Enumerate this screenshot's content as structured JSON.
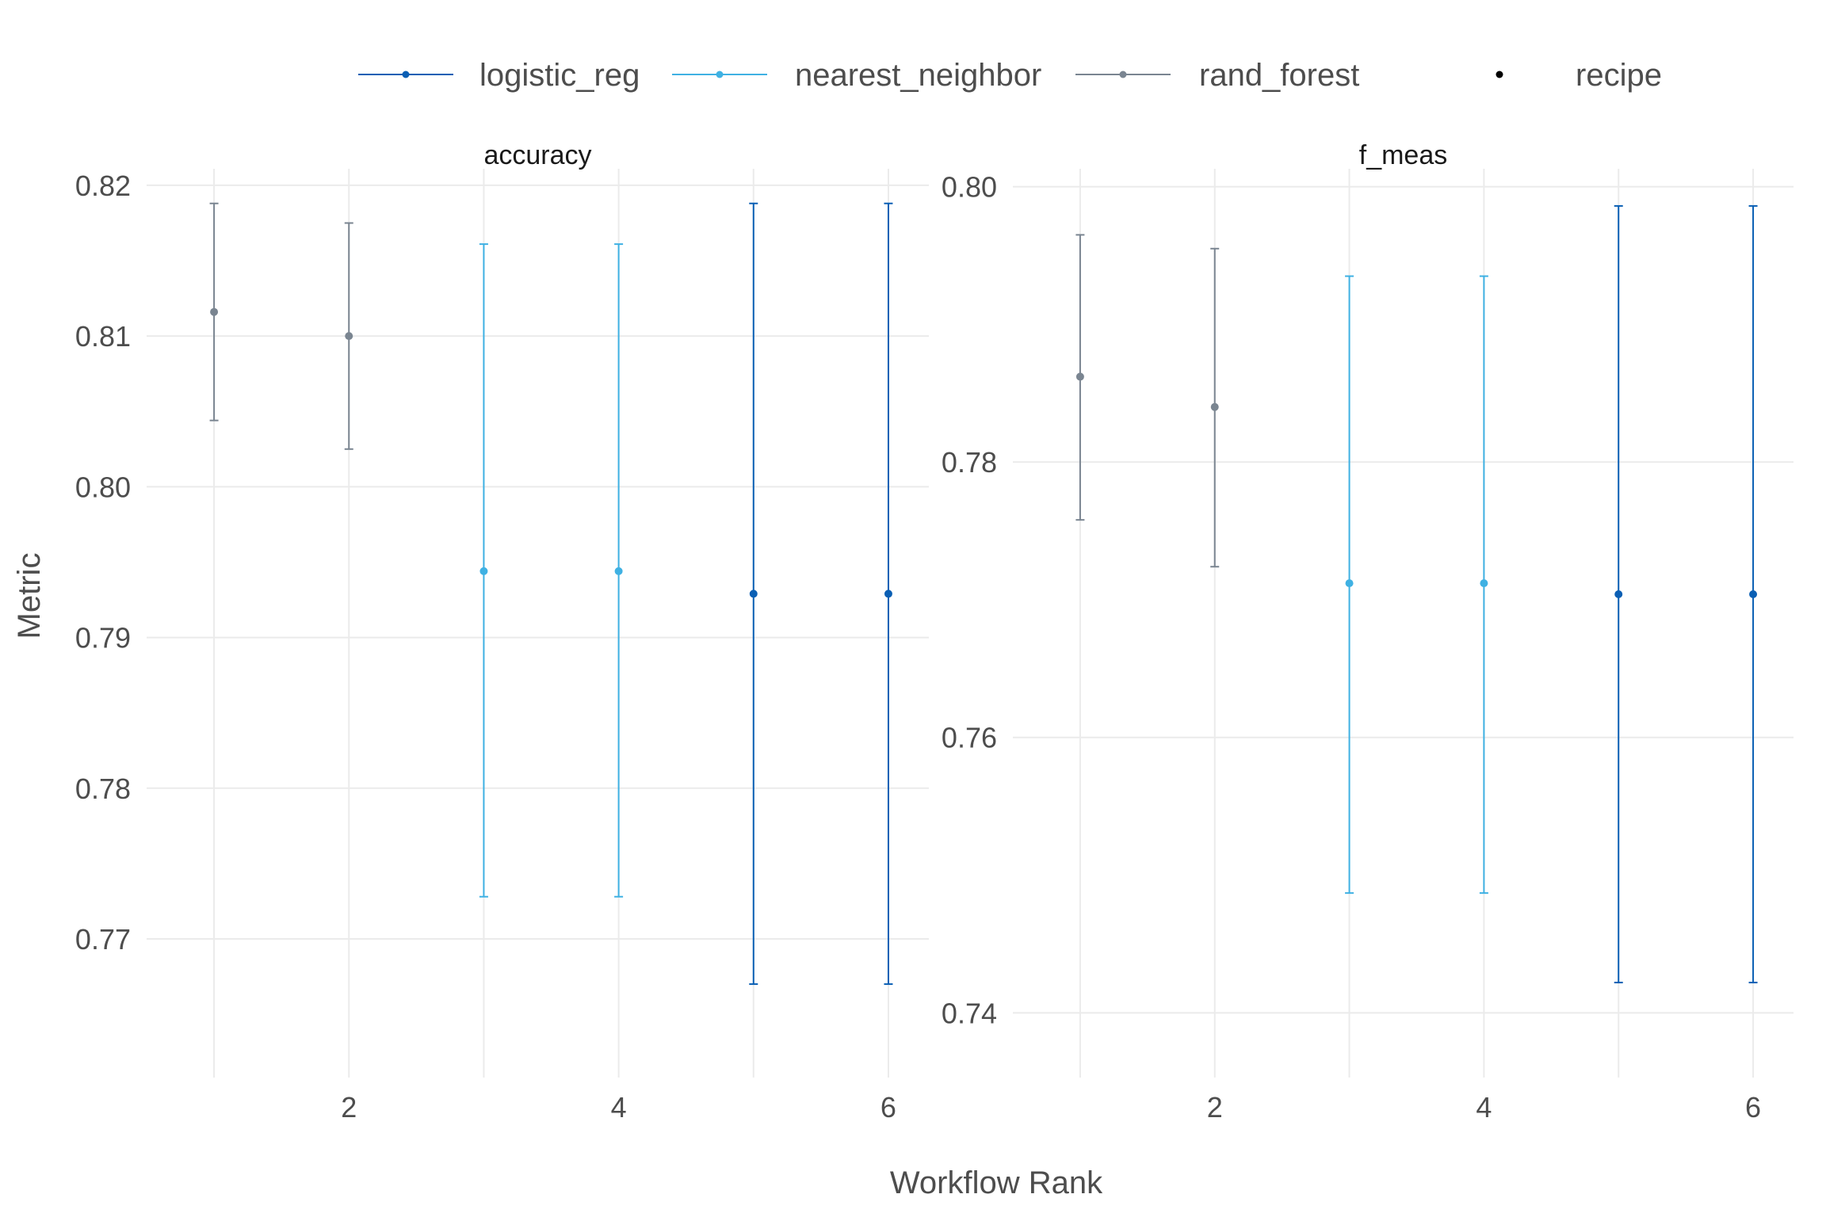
{
  "chart_data": {
    "type": "errorbar",
    "xlabel": "Workflow Rank",
    "ylabel": "Metric",
    "legend": {
      "placement": "top",
      "entries": [
        {
          "name": "logistic_reg",
          "color": "#0a5fb4"
        },
        {
          "name": "nearest_neighbor",
          "color": "#3fb1e3"
        },
        {
          "name": "rand_forest",
          "color": "#7a8591"
        },
        {
          "name": "recipe",
          "color": "#000000"
        }
      ]
    },
    "grid": true,
    "facets": [
      {
        "title": "accuracy",
        "xlim": [
          0.5,
          6.3
        ],
        "ylim": [
          0.7608,
          0.8211
        ],
        "x_ticks": [
          2,
          4,
          6
        ],
        "y_ticks": [
          0.77,
          0.78,
          0.79,
          0.8,
          0.81,
          0.82
        ],
        "y_tick_labels": [
          "0.77",
          "0.78",
          "0.79",
          "0.80",
          "0.81",
          "0.82"
        ],
        "points": [
          {
            "rank": 1,
            "model": "rand_forest",
            "mean": 0.8116,
            "lower": 0.8044,
            "upper": 0.8188
          },
          {
            "rank": 2,
            "model": "rand_forest",
            "mean": 0.81,
            "lower": 0.8025,
            "upper": 0.8175
          },
          {
            "rank": 3,
            "model": "nearest_neighbor",
            "mean": 0.7944,
            "lower": 0.7728,
            "upper": 0.8161
          },
          {
            "rank": 4,
            "model": "nearest_neighbor",
            "mean": 0.7944,
            "lower": 0.7728,
            "upper": 0.8161
          },
          {
            "rank": 5,
            "model": "logistic_reg",
            "mean": 0.7929,
            "lower": 0.767,
            "upper": 0.8188
          },
          {
            "rank": 6,
            "model": "logistic_reg",
            "mean": 0.7929,
            "lower": 0.767,
            "upper": 0.8188
          }
        ]
      },
      {
        "title": "f_meas",
        "xlim": [
          0.5,
          6.3
        ],
        "ylim": [
          0.7353,
          0.8013
        ],
        "x_ticks": [
          2,
          4,
          6
        ],
        "y_ticks": [
          0.74,
          0.76,
          0.78,
          0.8
        ],
        "y_tick_labels": [
          "0.74",
          "0.76",
          "0.78",
          "0.80"
        ],
        "points": [
          {
            "rank": 1,
            "model": "rand_forest",
            "mean": 0.7862,
            "lower": 0.7758,
            "upper": 0.7965
          },
          {
            "rank": 2,
            "model": "rand_forest",
            "mean": 0.784,
            "lower": 0.7724,
            "upper": 0.7955
          },
          {
            "rank": 3,
            "model": "nearest_neighbor",
            "mean": 0.7712,
            "lower": 0.7487,
            "upper": 0.7935
          },
          {
            "rank": 4,
            "model": "nearest_neighbor",
            "mean": 0.7712,
            "lower": 0.7487,
            "upper": 0.7935
          },
          {
            "rank": 5,
            "model": "logistic_reg",
            "mean": 0.7704,
            "lower": 0.7422,
            "upper": 0.7986
          },
          {
            "rank": 6,
            "model": "logistic_reg",
            "mean": 0.7704,
            "lower": 0.7422,
            "upper": 0.7986
          }
        ]
      }
    ]
  }
}
